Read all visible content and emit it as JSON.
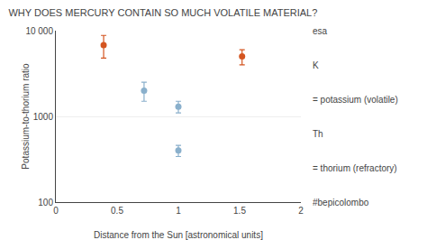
{
  "chart_data": {
    "type": "scatter",
    "title": "WHY DOES MERCURY CONTAIN SO MUCH VOLATILE MATERIAL?",
    "xlabel": "Distance from the Sun [astronomical units]",
    "ylabel": "Potassium-to-thorium ratio",
    "x": [
      0.39,
      0.72,
      1.0,
      1.0,
      1.52
    ],
    "values": [
      6800,
      2000,
      1300,
      400,
      5000
    ],
    "yerr_low": [
      2000,
      500,
      200,
      60,
      1000
    ],
    "yerr_high": [
      2000,
      500,
      200,
      60,
      1000
    ],
    "colors": [
      "#d45520",
      "#8ab0cc",
      "#8ab0cc",
      "#8ab0cc",
      "#d45520"
    ],
    "xlim": [
      0,
      2
    ],
    "ylim": [
      100,
      10000
    ],
    "xticks": [
      0,
      0.5,
      1,
      1.5,
      2
    ],
    "yticks": [
      100,
      1000,
      {
        "value": 10000,
        "label": "10 000"
      }
    ],
    "log": "y",
    "grid": "y",
    "annotations": [
      "esa",
      "K",
      "= potassium (volatile)",
      "Th",
      "= thorium (refractory)",
      "#bepicolombo"
    ]
  }
}
